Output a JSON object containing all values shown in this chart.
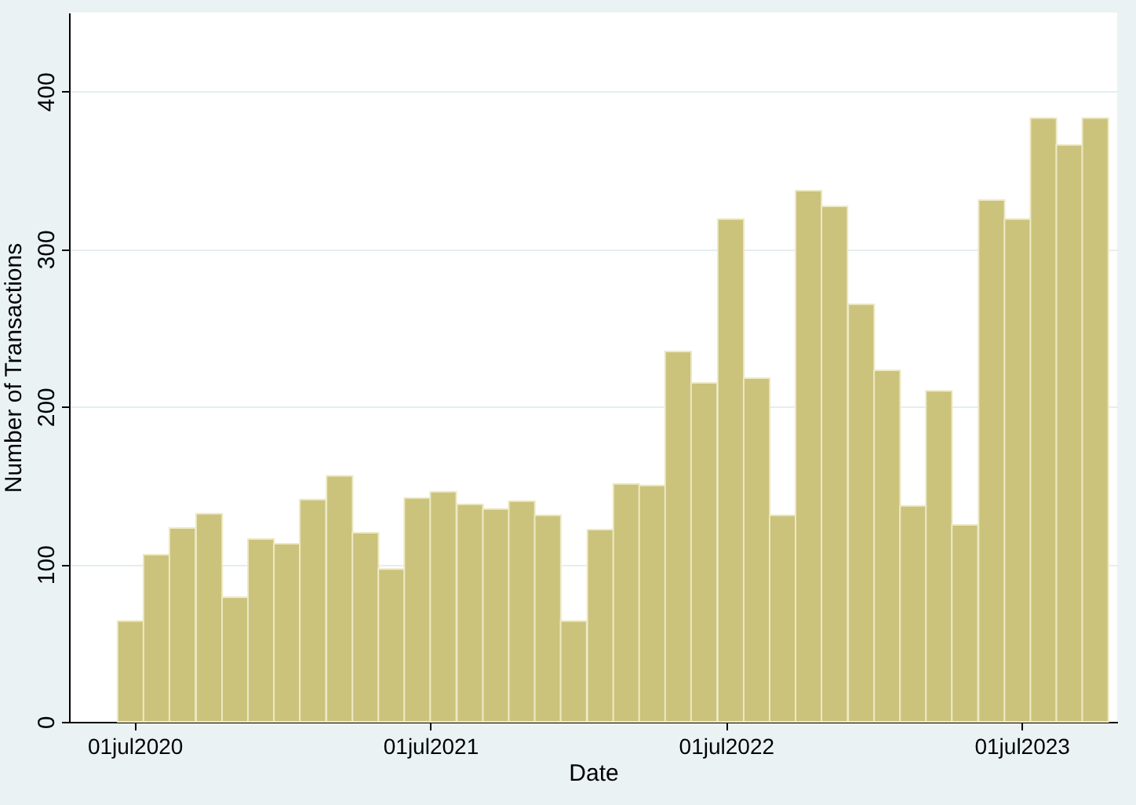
{
  "chart_data": {
    "type": "bar",
    "xlabel": "Date",
    "ylabel": "Number of Transactions",
    "x": [
      "2020-06-26",
      "2020-07-28",
      "2020-08-29",
      "2020-10-01",
      "2020-11-02",
      "2020-12-04",
      "2021-01-05",
      "2021-02-06",
      "2021-03-11",
      "2021-04-12",
      "2021-05-14",
      "2021-06-15",
      "2021-07-17",
      "2021-08-19",
      "2021-09-20",
      "2021-10-22",
      "2021-11-23",
      "2021-12-25",
      "2022-01-27",
      "2022-02-28",
      "2022-04-01",
      "2022-05-03",
      "2022-06-04",
      "2022-07-07",
      "2022-08-08",
      "2022-09-09",
      "2022-10-11",
      "2022-11-12",
      "2022-12-15",
      "2023-01-16",
      "2023-02-17",
      "2023-03-21",
      "2023-04-22",
      "2023-05-25",
      "2023-06-26",
      "2023-07-28",
      "2023-08-29",
      "2023-09-30"
    ],
    "values": [
      64,
      106,
      123,
      132,
      79,
      116,
      113,
      141,
      156,
      120,
      97,
      142,
      146,
      138,
      135,
      140,
      131,
      64,
      122,
      151,
      150,
      235,
      215,
      319,
      218,
      131,
      337,
      327,
      265,
      223,
      137,
      210,
      125,
      331,
      319,
      383,
      366,
      383
    ],
    "color": "#cbc27c",
    "xlim": [
      "2020-04-11",
      "2023-10-27"
    ],
    "xticks": [
      {
        "value": "2020-07-01",
        "label": "01jul2020"
      },
      {
        "value": "2021-07-01",
        "label": "01jul2021"
      },
      {
        "value": "2022-07-01",
        "label": "01jul2022"
      },
      {
        "value": "2023-07-01",
        "label": "01jul2023"
      }
    ],
    "ylim": [
      0,
      450
    ],
    "yticks": [
      0,
      100,
      200,
      300,
      400
    ],
    "grid": "y"
  }
}
